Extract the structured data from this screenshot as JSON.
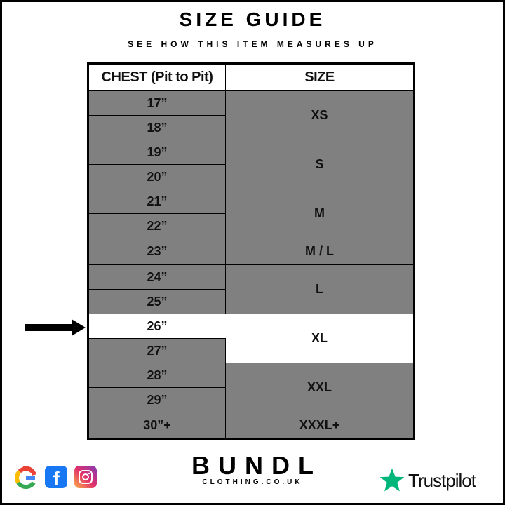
{
  "title": "SIZE GUIDE",
  "subtitle": "SEE HOW THIS ITEM MEASURES UP",
  "table": {
    "headers": [
      "CHEST (Pit to Pit)",
      "SIZE"
    ],
    "chest": [
      "17”",
      "18”",
      "19”",
      "20”",
      "21”",
      "22”",
      "23”",
      "24”",
      "25”",
      "26”",
      "27”",
      "28”",
      "29”",
      "30”+"
    ],
    "sizes": [
      "XS",
      "S",
      "M",
      "M / L",
      "L",
      "XL",
      "XXL",
      "XXXL+"
    ],
    "highlighted_chest": "26”",
    "highlighted_size": "XL"
  },
  "colors": {
    "cell": "#808080",
    "highlight": "#ffffff",
    "trustpilot_star": "#00b67a"
  },
  "footer": {
    "social_icons": [
      "google-icon",
      "facebook-icon",
      "instagram-icon"
    ],
    "brand": "BUNDL",
    "brand_sub": "CLOTHING.CO.UK",
    "trustpilot": "Trustpilot"
  }
}
